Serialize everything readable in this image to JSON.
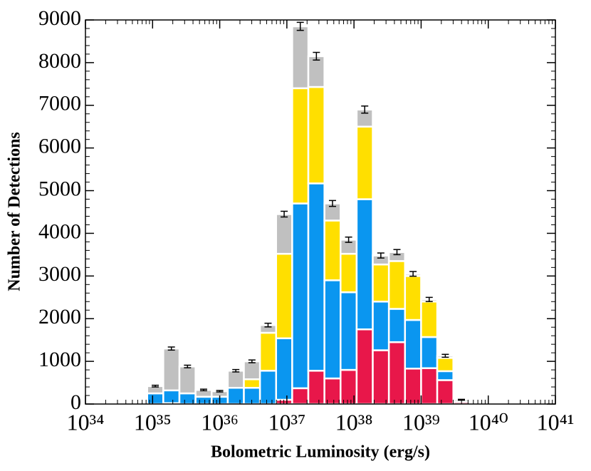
{
  "chart_data": {
    "type": "stacked_histogram",
    "xlabel": "Bolometric Luminosity (erg/s)",
    "ylabel": "Number of Detections",
    "xlog": true,
    "xlim": [
      1e+34,
      1e+41
    ],
    "xticks": [
      {
        "value": 1e+34,
        "label": "10³⁴"
      },
      {
        "value": 1e+35,
        "label": "10³⁵"
      },
      {
        "value": 1e+36,
        "label": "10³⁶"
      },
      {
        "value": 1e+37,
        "label": "10³⁷"
      },
      {
        "value": 1e+38,
        "label": "10³⁸"
      },
      {
        "value": 1e+39,
        "label": "10³⁹"
      },
      {
        "value": 1e+40,
        "label": "10⁴⁰"
      },
      {
        "value": 1e+41,
        "label": "10⁴¹"
      }
    ],
    "ylim": [
      0,
      9000
    ],
    "yticks": [
      0,
      1000,
      2000,
      3000,
      4000,
      5000,
      6000,
      7000,
      8000,
      9000
    ],
    "bins": [
      8.32e+34,
      1.445e+35,
      2.512e+35,
      4.365e+35,
      7.586e+35,
      1.318e+36,
      2.291e+36,
      3.981e+36,
      6.918e+36,
      1.202e+37,
      2.089e+37,
      3.631e+37,
      6.31e+37,
      1.096e+38,
      1.905e+38,
      3.311e+38,
      5.754e+38,
      1e+39,
      1.738e+39,
      3.02e+39,
      5.248e+39
    ],
    "series": [
      {
        "color": "#e8174a",
        "values": [
          0,
          20,
          0,
          0,
          0,
          0,
          0,
          0,
          100,
          370,
          780,
          600,
          800,
          1750,
          1260,
          1450,
          830,
          840,
          560,
          50
        ]
      },
      {
        "color": "#0a96f0",
        "values": [
          250,
          300,
          250,
          170,
          170,
          380,
          380,
          780,
          1440,
          4330,
          4390,
          2300,
          1820,
          3050,
          1140,
          780,
          1140,
          730,
          210,
          0
        ]
      },
      {
        "color": "#ffdf00",
        "values": [
          0,
          0,
          0,
          0,
          0,
          0,
          200,
          890,
          1980,
          2700,
          2260,
          1400,
          900,
          1700,
          870,
          1120,
          1030,
          830,
          310,
          0
        ]
      },
      {
        "color": "#c0c0c0",
        "values": [
          170,
          980,
          630,
          160,
          130,
          400,
          420,
          180,
          930,
          1450,
          720,
          400,
          330,
          400,
          210,
          210,
          50,
          50,
          50,
          50
        ]
      }
    ],
    "errors": [
      20,
      36,
      30,
      18,
      17,
      28,
      32,
      43,
      67,
      94,
      90,
      69,
      62,
      83,
      59,
      60,
      55,
      49,
      34,
      10
    ]
  }
}
